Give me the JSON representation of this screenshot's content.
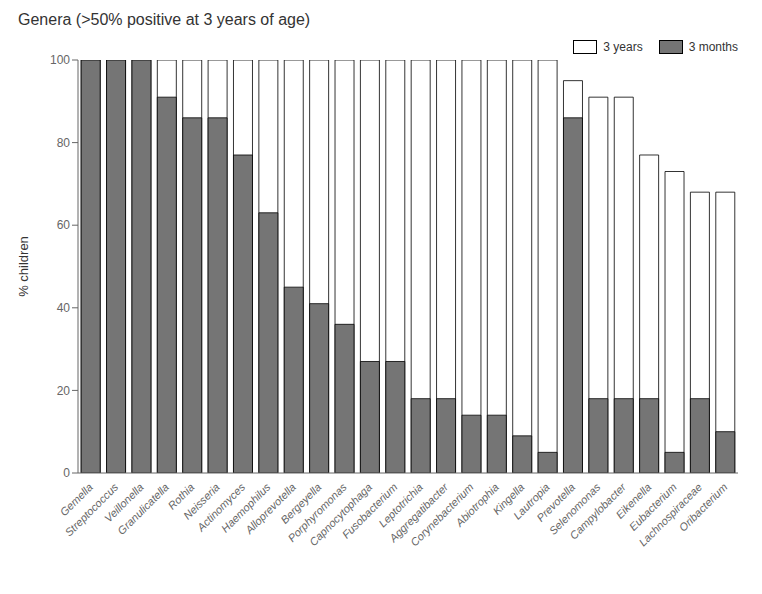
{
  "chart_data": {
    "type": "bar",
    "title": "Genera (>50% positive at 3 years of age)",
    "ylabel": "% children",
    "categories": [
      "Gemella",
      "Streptococcus",
      "Veillonella",
      "Granulicatella",
      "Rothia",
      "Neisseria",
      "Actinomyces",
      "Haemophilus",
      "Alloprevotella",
      "Bergeyella",
      "Porphyromonas",
      "Capnocytophaga",
      "Fusobacterium",
      "Leptotrichia",
      "Aggregatibacter",
      "Corynebacterium",
      "Abiotrophia",
      "Kingella",
      "Lautropia",
      "Prevotella",
      "Selenomonas",
      "Campylobacter",
      "Eikenella",
      "Eubacterium",
      "Lachnospiraceae",
      "Oribacterium"
    ],
    "series": [
      {
        "name": "3 years",
        "color": "#ffffff",
        "values": [
          100,
          100,
          100,
          100,
          100,
          100,
          100,
          100,
          100,
          100,
          100,
          100,
          100,
          100,
          100,
          100,
          100,
          100,
          100,
          95,
          91,
          91,
          77,
          73,
          68,
          68
        ]
      },
      {
        "name": "3 months",
        "color": "#757575",
        "values": [
          100,
          100,
          100,
          91,
          86,
          86,
          77,
          63,
          45,
          41,
          36,
          27,
          27,
          18,
          18,
          14,
          14,
          9,
          5,
          86,
          18,
          18,
          18,
          5,
          18,
          10
        ]
      }
    ],
    "ylim": [
      0,
      100
    ],
    "yticks": [
      0,
      20,
      40,
      60,
      80,
      100
    ],
    "grid": false,
    "legend": "upper right"
  }
}
